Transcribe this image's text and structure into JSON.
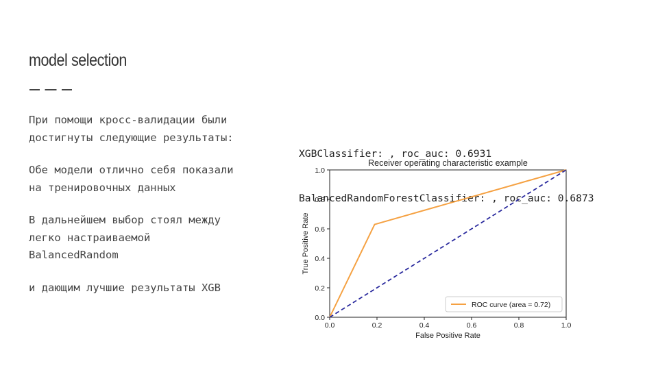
{
  "slide": {
    "title": "model selection",
    "paragraphs": [
      "При помощи кросс-валидации были\nдостигнуты следующие результаты:",
      "Обе модели отлично себя показали\nна тренировочных данных",
      "В дальнейшем выбор стоял между\nлегко настраиваемой\nBalancedRandom",
      "и дающим лучшие результаты XGB"
    ],
    "results": [
      "XGBClassifier: , roc_auc: 0.6931",
      "BalancedRandomForestClassifier: , roc_auc: 0.6873"
    ]
  },
  "chart_data": {
    "type": "line",
    "title": "Receiver operating characteristic example",
    "xlabel": "False Positive Rate",
    "ylabel": "True Positive Rate",
    "xlim": [
      0.0,
      1.0
    ],
    "ylim": [
      0.0,
      1.0
    ],
    "xticks": [
      "0.0",
      "0.2",
      "0.4",
      "0.6",
      "0.8",
      "1.0"
    ],
    "yticks": [
      "0.0",
      "0.2",
      "0.4",
      "0.6",
      "0.8",
      "1.0"
    ],
    "grid": false,
    "legend_position": "lower-right",
    "series": [
      {
        "name": "ROC curve (area = 0.72)",
        "x": [
          0.0,
          0.19,
          1.0
        ],
        "y": [
          0.0,
          0.63,
          1.0
        ],
        "color": "#f5a142",
        "style": "solid"
      },
      {
        "x": [
          0.0,
          1.0
        ],
        "y": [
          0.0,
          1.0
        ],
        "color": "#2b2b9e",
        "style": "dashed"
      }
    ]
  }
}
